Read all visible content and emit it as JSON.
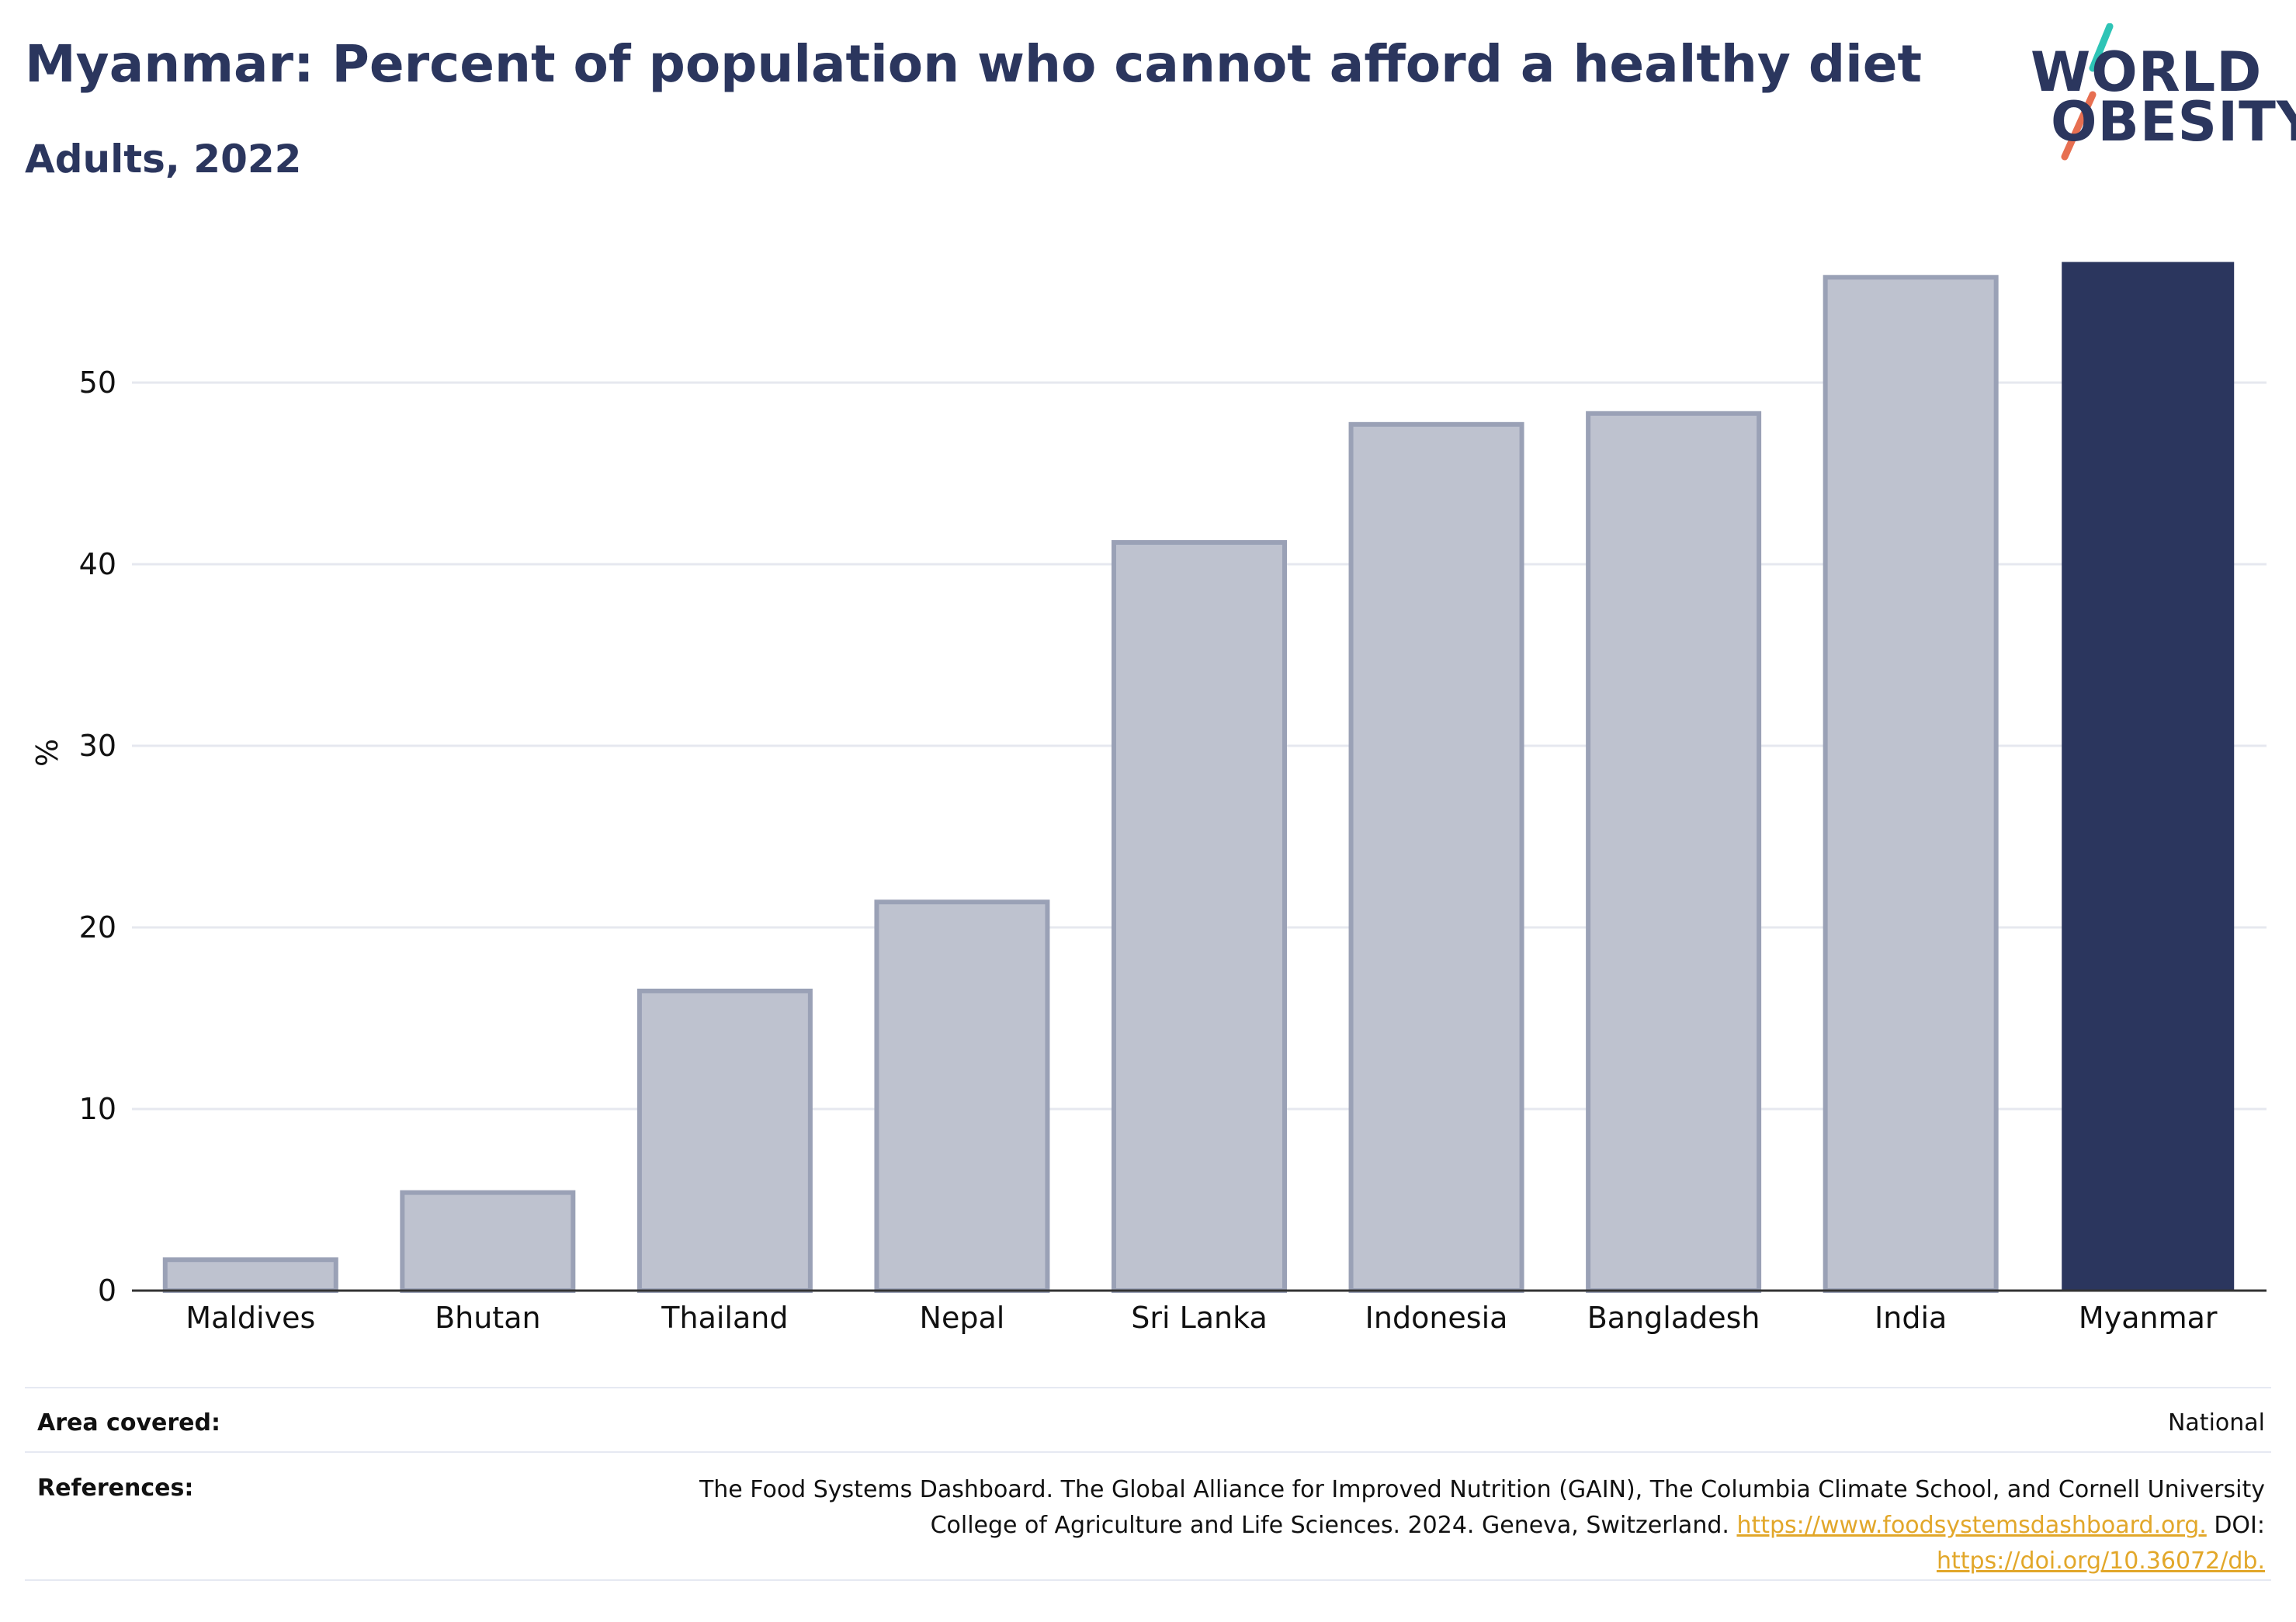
{
  "header": {
    "title": "Myanmar: Percent of population who cannot afford a healthy diet",
    "subtitle": "Adults, 2022"
  },
  "logo": {
    "line1": "WORLD",
    "line2": "OBESITY",
    "slash_colors": [
      "#2ec4b6",
      "#e76f51"
    ]
  },
  "colors": {
    "highlight": "#2b365e",
    "other_bar_fill": "#bec2cf",
    "other_bar_stroke": "#9aa1b6",
    "grid": "#e6e8ef",
    "link": "#e2a72a"
  },
  "chart_data": {
    "type": "bar",
    "categories": [
      "Maldives",
      "Bhutan",
      "Thailand",
      "Nepal",
      "Sri Lanka",
      "Indonesia",
      "Bangladesh",
      "India",
      "Myanmar"
    ],
    "values": [
      1.7,
      5.4,
      16.5,
      21.4,
      41.2,
      47.7,
      48.3,
      55.8,
      56.6
    ],
    "highlight": "Myanmar",
    "ylabel": "%",
    "xlabel": "",
    "ylim": [
      0,
      58
    ],
    "yticks": [
      0,
      10,
      20,
      30,
      40,
      50
    ],
    "grid": true
  },
  "footer": {
    "area_label": "Area covered:",
    "area_value": "National",
    "references_label": "References:",
    "ref_text_1": "The Food Systems Dashboard. The Global Alliance for Improved Nutrition (GAIN), The Columbia Climate School, and Cornell University",
    "ref_text_2": "College of Agriculture and Life Sciences. 2024. Geneva, Switzerland.",
    "ref_link_1": "https://www.foodsystemsdashboard.org.",
    "ref_doi_label": "DOI:",
    "ref_link_2": "https://doi.org/10.36072/db."
  }
}
